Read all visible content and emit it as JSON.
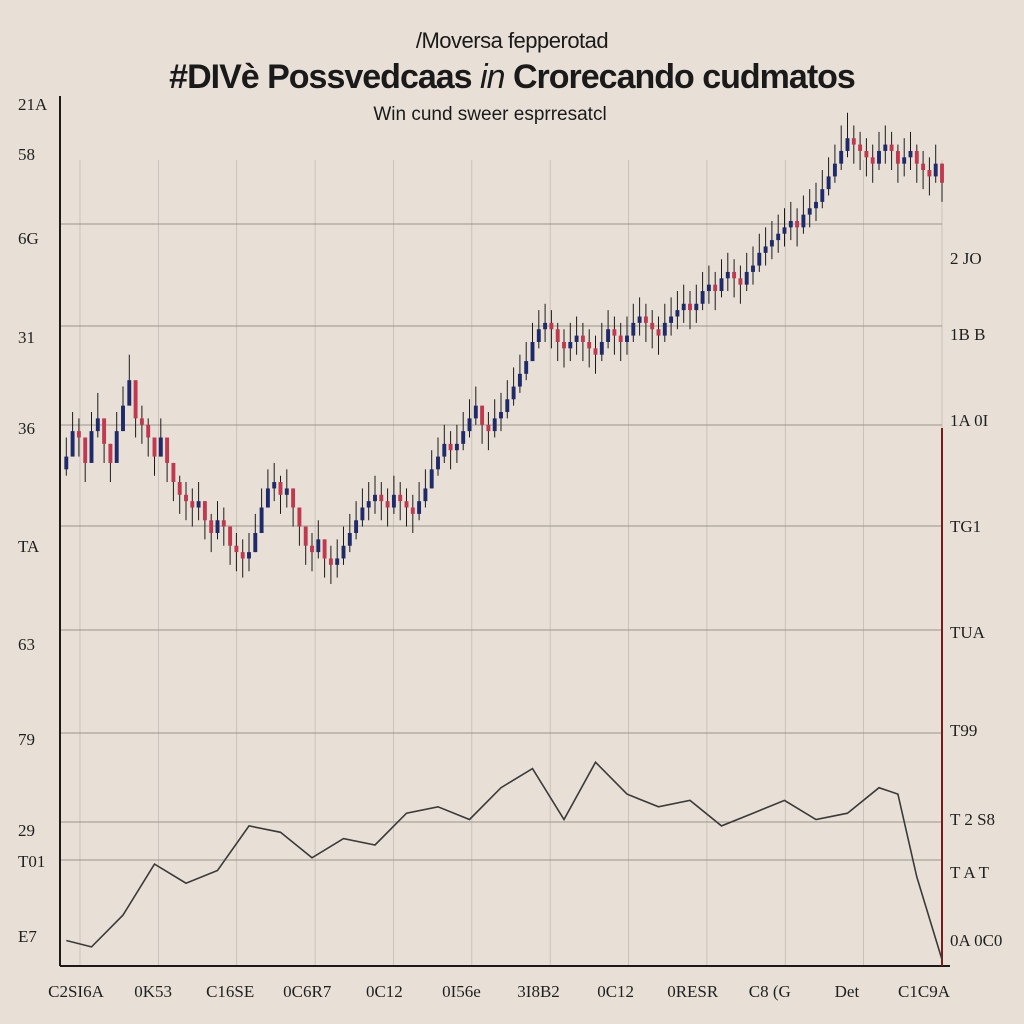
{
  "chart_data": {
    "type": "line",
    "supertitle": "/Moversa fepperotad",
    "title_main": "#DIVè Possvedcaas",
    "title_italic": "in",
    "title_tail": "Crorecando cudmatos",
    "subtitle": "Win cund sweer esprresatcl",
    "x_tick_labels": [
      "C2SI6A",
      "0K53",
      "C16SE",
      "0C6R7",
      "0C12",
      "0I56e",
      "3I8B2",
      "0C12",
      "0RESR",
      "C8 (G",
      "Det",
      "C1C9A"
    ],
    "y_left_tick_labels": [
      "21A",
      "58",
      "6G",
      "31",
      "36",
      "TA",
      "63",
      "79",
      "29",
      "T01",
      "E7"
    ],
    "y_right_tick_labels": [
      "2 JO",
      "1B B",
      "1A 0I",
      "TG1",
      "TUA",
      "T99",
      "T 2 S8",
      "T A T",
      "0A 0C0"
    ],
    "series": [
      {
        "kind": "candlestick",
        "x": [
          1,
          2,
          3,
          4,
          5,
          6,
          7,
          8,
          9,
          10,
          11,
          12,
          13,
          14,
          15,
          16,
          17,
          18,
          19,
          20,
          21,
          22,
          23,
          24,
          25,
          26,
          27,
          28,
          29,
          30,
          31,
          32,
          33,
          34,
          35,
          36,
          37,
          38,
          39,
          40,
          41,
          42,
          43,
          44,
          45,
          46,
          47,
          48,
          49,
          50,
          51,
          52,
          53,
          54,
          55,
          56,
          57,
          58,
          59,
          60,
          61,
          62,
          63,
          64,
          65,
          66,
          67,
          68,
          69,
          70,
          71,
          72,
          73,
          74,
          75,
          76,
          77,
          78,
          79,
          80,
          81,
          82,
          83,
          84,
          85,
          86,
          87,
          88,
          89,
          90,
          91,
          92,
          93,
          94,
          95,
          96,
          97,
          98,
          99,
          100,
          101,
          102,
          103,
          104,
          105,
          106,
          107,
          108,
          109,
          110,
          111,
          112,
          113,
          114,
          115,
          116,
          117,
          118,
          119,
          120,
          121,
          122,
          123,
          124,
          125,
          126,
          127,
          128,
          129,
          130,
          131,
          132,
          133,
          134,
          135,
          136,
          137,
          138,
          139,
          140
        ],
        "close": [
          34,
          38,
          37,
          33,
          38,
          40,
          36,
          33,
          38,
          42,
          46,
          40,
          39,
          37,
          34,
          37,
          33,
          30,
          28,
          27,
          26,
          27,
          24,
          22,
          24,
          23,
          20,
          19,
          18,
          19,
          22,
          26,
          29,
          30,
          28,
          29,
          26,
          23,
          20,
          19,
          21,
          18,
          17,
          18,
          20,
          22,
          24,
          26,
          27,
          28,
          27,
          26,
          28,
          27,
          26,
          25,
          27,
          29,
          32,
          34,
          36,
          35,
          36,
          38,
          40,
          42,
          39,
          38,
          40,
          41,
          43,
          45,
          47,
          49,
          52,
          54,
          55,
          54,
          52,
          51,
          52,
          53,
          52,
          51,
          50,
          52,
          54,
          53,
          52,
          53,
          55,
          56,
          55,
          54,
          53,
          55,
          56,
          57,
          58,
          57,
          58,
          60,
          61,
          60,
          62,
          63,
          62,
          61,
          63,
          64,
          66,
          67,
          68,
          69,
          70,
          71,
          70,
          72,
          73,
          74,
          76,
          78,
          80,
          82,
          84,
          83,
          82,
          81,
          80,
          82,
          83,
          82,
          80,
          81,
          82,
          80,
          79,
          78,
          80,
          77
        ],
        "high": [
          37,
          41,
          40,
          36,
          41,
          44,
          39,
          36,
          41,
          45,
          50,
          43,
          42,
          40,
          37,
          40,
          36,
          33,
          31,
          30,
          29,
          30,
          27,
          25,
          27,
          26,
          23,
          22,
          21,
          22,
          25,
          29,
          32,
          33,
          31,
          32,
          29,
          26,
          23,
          22,
          24,
          21,
          20,
          21,
          23,
          25,
          27,
          29,
          30,
          31,
          30,
          29,
          31,
          30,
          29,
          28,
          30,
          32,
          35,
          37,
          39,
          38,
          39,
          41,
          43,
          45,
          42,
          41,
          43,
          44,
          46,
          48,
          50,
          52,
          55,
          57,
          58,
          57,
          55,
          54,
          55,
          56,
          55,
          54,
          53,
          55,
          57,
          56,
          55,
          56,
          58,
          59,
          58,
          57,
          56,
          58,
          59,
          60,
          61,
          60,
          61,
          63,
          64,
          63,
          65,
          66,
          65,
          64,
          66,
          67,
          69,
          70,
          71,
          72,
          73,
          74,
          73,
          75,
          76,
          77,
          79,
          81,
          83,
          86,
          88,
          86,
          85,
          84,
          83,
          85,
          86,
          85,
          83,
          84,
          85,
          83,
          82,
          81,
          83,
          80
        ],
        "low": [
          31,
          35,
          34,
          30,
          35,
          37,
          33,
          30,
          35,
          39,
          43,
          37,
          36,
          34,
          31,
          34,
          30,
          27,
          25,
          24,
          23,
          24,
          21,
          19,
          21,
          20,
          17,
          16,
          15,
          16,
          19,
          23,
          26,
          27,
          25,
          26,
          23,
          20,
          17,
          16,
          18,
          15,
          14,
          15,
          17,
          19,
          21,
          23,
          24,
          25,
          24,
          23,
          25,
          24,
          23,
          22,
          24,
          26,
          29,
          31,
          33,
          32,
          33,
          35,
          37,
          39,
          36,
          35,
          37,
          38,
          40,
          42,
          44,
          46,
          49,
          51,
          52,
          51,
          49,
          48,
          49,
          50,
          49,
          48,
          47,
          49,
          51,
          50,
          49,
          50,
          52,
          53,
          52,
          51,
          50,
          52,
          53,
          54,
          55,
          54,
          55,
          57,
          58,
          57,
          59,
          60,
          59,
          58,
          60,
          61,
          63,
          64,
          65,
          66,
          67,
          68,
          67,
          69,
          70,
          71,
          73,
          75,
          77,
          79,
          81,
          80,
          79,
          78,
          77,
          79,
          80,
          79,
          77,
          78,
          79,
          77,
          76,
          75,
          77,
          74
        ]
      },
      {
        "kind": "line",
        "x": [
          1,
          5,
          10,
          15,
          20,
          25,
          30,
          35,
          40,
          45,
          50,
          55,
          60,
          65,
          70,
          75,
          80,
          85,
          90,
          95,
          100,
          105,
          110,
          115,
          120,
          125,
          130,
          133,
          136,
          140
        ],
        "y": [
          -42,
          -43,
          -38,
          -30,
          -33,
          -31,
          -24,
          -25,
          -29,
          -26,
          -27,
          -22,
          -21,
          -23,
          -18,
          -15,
          -23,
          -14,
          -19,
          -21,
          -20,
          -24,
          -22,
          -20,
          -23,
          -22,
          -18,
          -19,
          -32,
          -45
        ]
      }
    ],
    "xlim": [
      0,
      140
    ],
    "ylim": [
      -46,
      90
    ],
    "grid": true,
    "colors": {
      "background": "#e8e0d6",
      "bear": "#c0394f",
      "bull": "#1f2a6b",
      "wick": "#1a1a1a",
      "line": "#3a3a3a",
      "grid": "#9a948c",
      "accent": "#7a1a1a"
    }
  }
}
